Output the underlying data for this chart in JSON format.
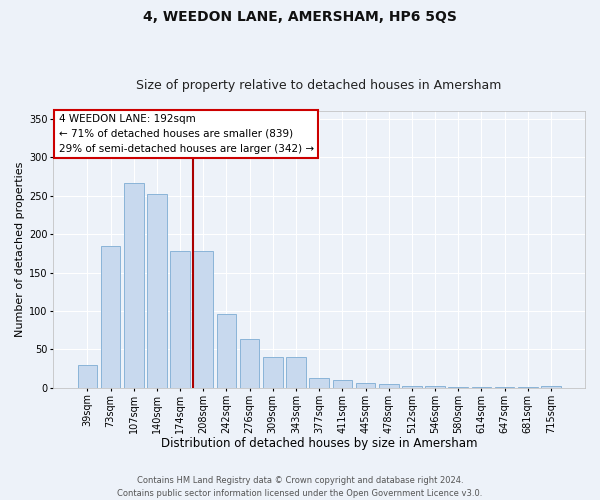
{
  "title": "4, WEEDON LANE, AMERSHAM, HP6 5QS",
  "subtitle": "Size of property relative to detached houses in Amersham",
  "xlabel": "Distribution of detached houses by size in Amersham",
  "ylabel": "Number of detached properties",
  "bar_labels": [
    "39sqm",
    "73sqm",
    "107sqm",
    "140sqm",
    "174sqm",
    "208sqm",
    "242sqm",
    "276sqm",
    "309sqm",
    "343sqm",
    "377sqm",
    "411sqm",
    "445sqm",
    "478sqm",
    "512sqm",
    "546sqm",
    "580sqm",
    "614sqm",
    "647sqm",
    "681sqm",
    "715sqm"
  ],
  "bar_values": [
    30,
    185,
    267,
    252,
    178,
    178,
    96,
    64,
    40,
    40,
    13,
    10,
    7,
    5,
    3,
    2,
    1,
    1,
    1,
    1,
    2
  ],
  "bar_color": "#c8d9ee",
  "bar_edgecolor": "#8ab4d8",
  "vline_index": 4.5,
  "vline_color": "#aa0000",
  "ylim": [
    0,
    360
  ],
  "yticks": [
    0,
    50,
    100,
    150,
    200,
    250,
    300,
    350
  ],
  "annotation_title": "4 WEEDON LANE: 192sqm",
  "annotation_line2": "← 71% of detached houses are smaller (839)",
  "annotation_line3": "29% of semi-detached houses are larger (342) →",
  "annotation_box_facecolor": "#ffffff",
  "annotation_box_edgecolor": "#cc0000",
  "footer_line1": "Contains HM Land Registry data © Crown copyright and database right 2024.",
  "footer_line2": "Contains public sector information licensed under the Open Government Licence v3.0.",
  "background_color": "#edf2f9",
  "grid_color": "#ffffff",
  "title_fontsize": 10,
  "subtitle_fontsize": 9,
  "xlabel_fontsize": 8.5,
  "ylabel_fontsize": 8,
  "tick_fontsize": 7,
  "annotation_fontsize": 7.5,
  "footer_fontsize": 6
}
